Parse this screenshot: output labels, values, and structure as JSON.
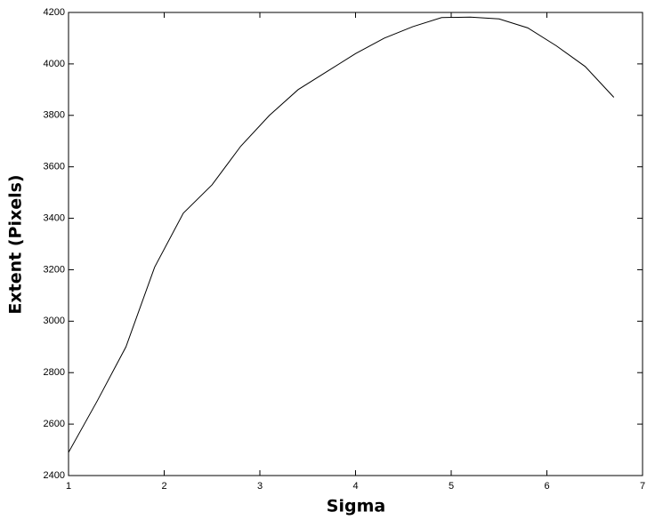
{
  "chart_data": {
    "type": "line",
    "xlabel": "Sigma",
    "ylabel": "Extent (Pixels)",
    "x": [
      1,
      1.3,
      1.6,
      1.9,
      2.2,
      2.5,
      2.8,
      3.1,
      3.4,
      3.7,
      4.0,
      4.3,
      4.6,
      4.9,
      5.2,
      5.5,
      5.8,
      6.1,
      6.4,
      6.7
    ],
    "series": [
      {
        "color": "#000000",
        "values": [
          2490,
          2690,
          2900,
          3210,
          3420,
          3530,
          3680,
          3800,
          3900,
          3970,
          4040,
          4100,
          4145,
          4180,
          4182,
          4175,
          4140,
          4070,
          3990,
          3870
        ]
      }
    ],
    "xlim": [
      1,
      7
    ],
    "xticks": [
      1,
      2,
      3,
      4,
      5,
      6,
      7
    ],
    "ylim": [
      2400,
      4200
    ],
    "yticks": [
      2400,
      2600,
      2800,
      3000,
      3200,
      3400,
      3600,
      3800,
      4000,
      4200
    ],
    "grid": false
  }
}
